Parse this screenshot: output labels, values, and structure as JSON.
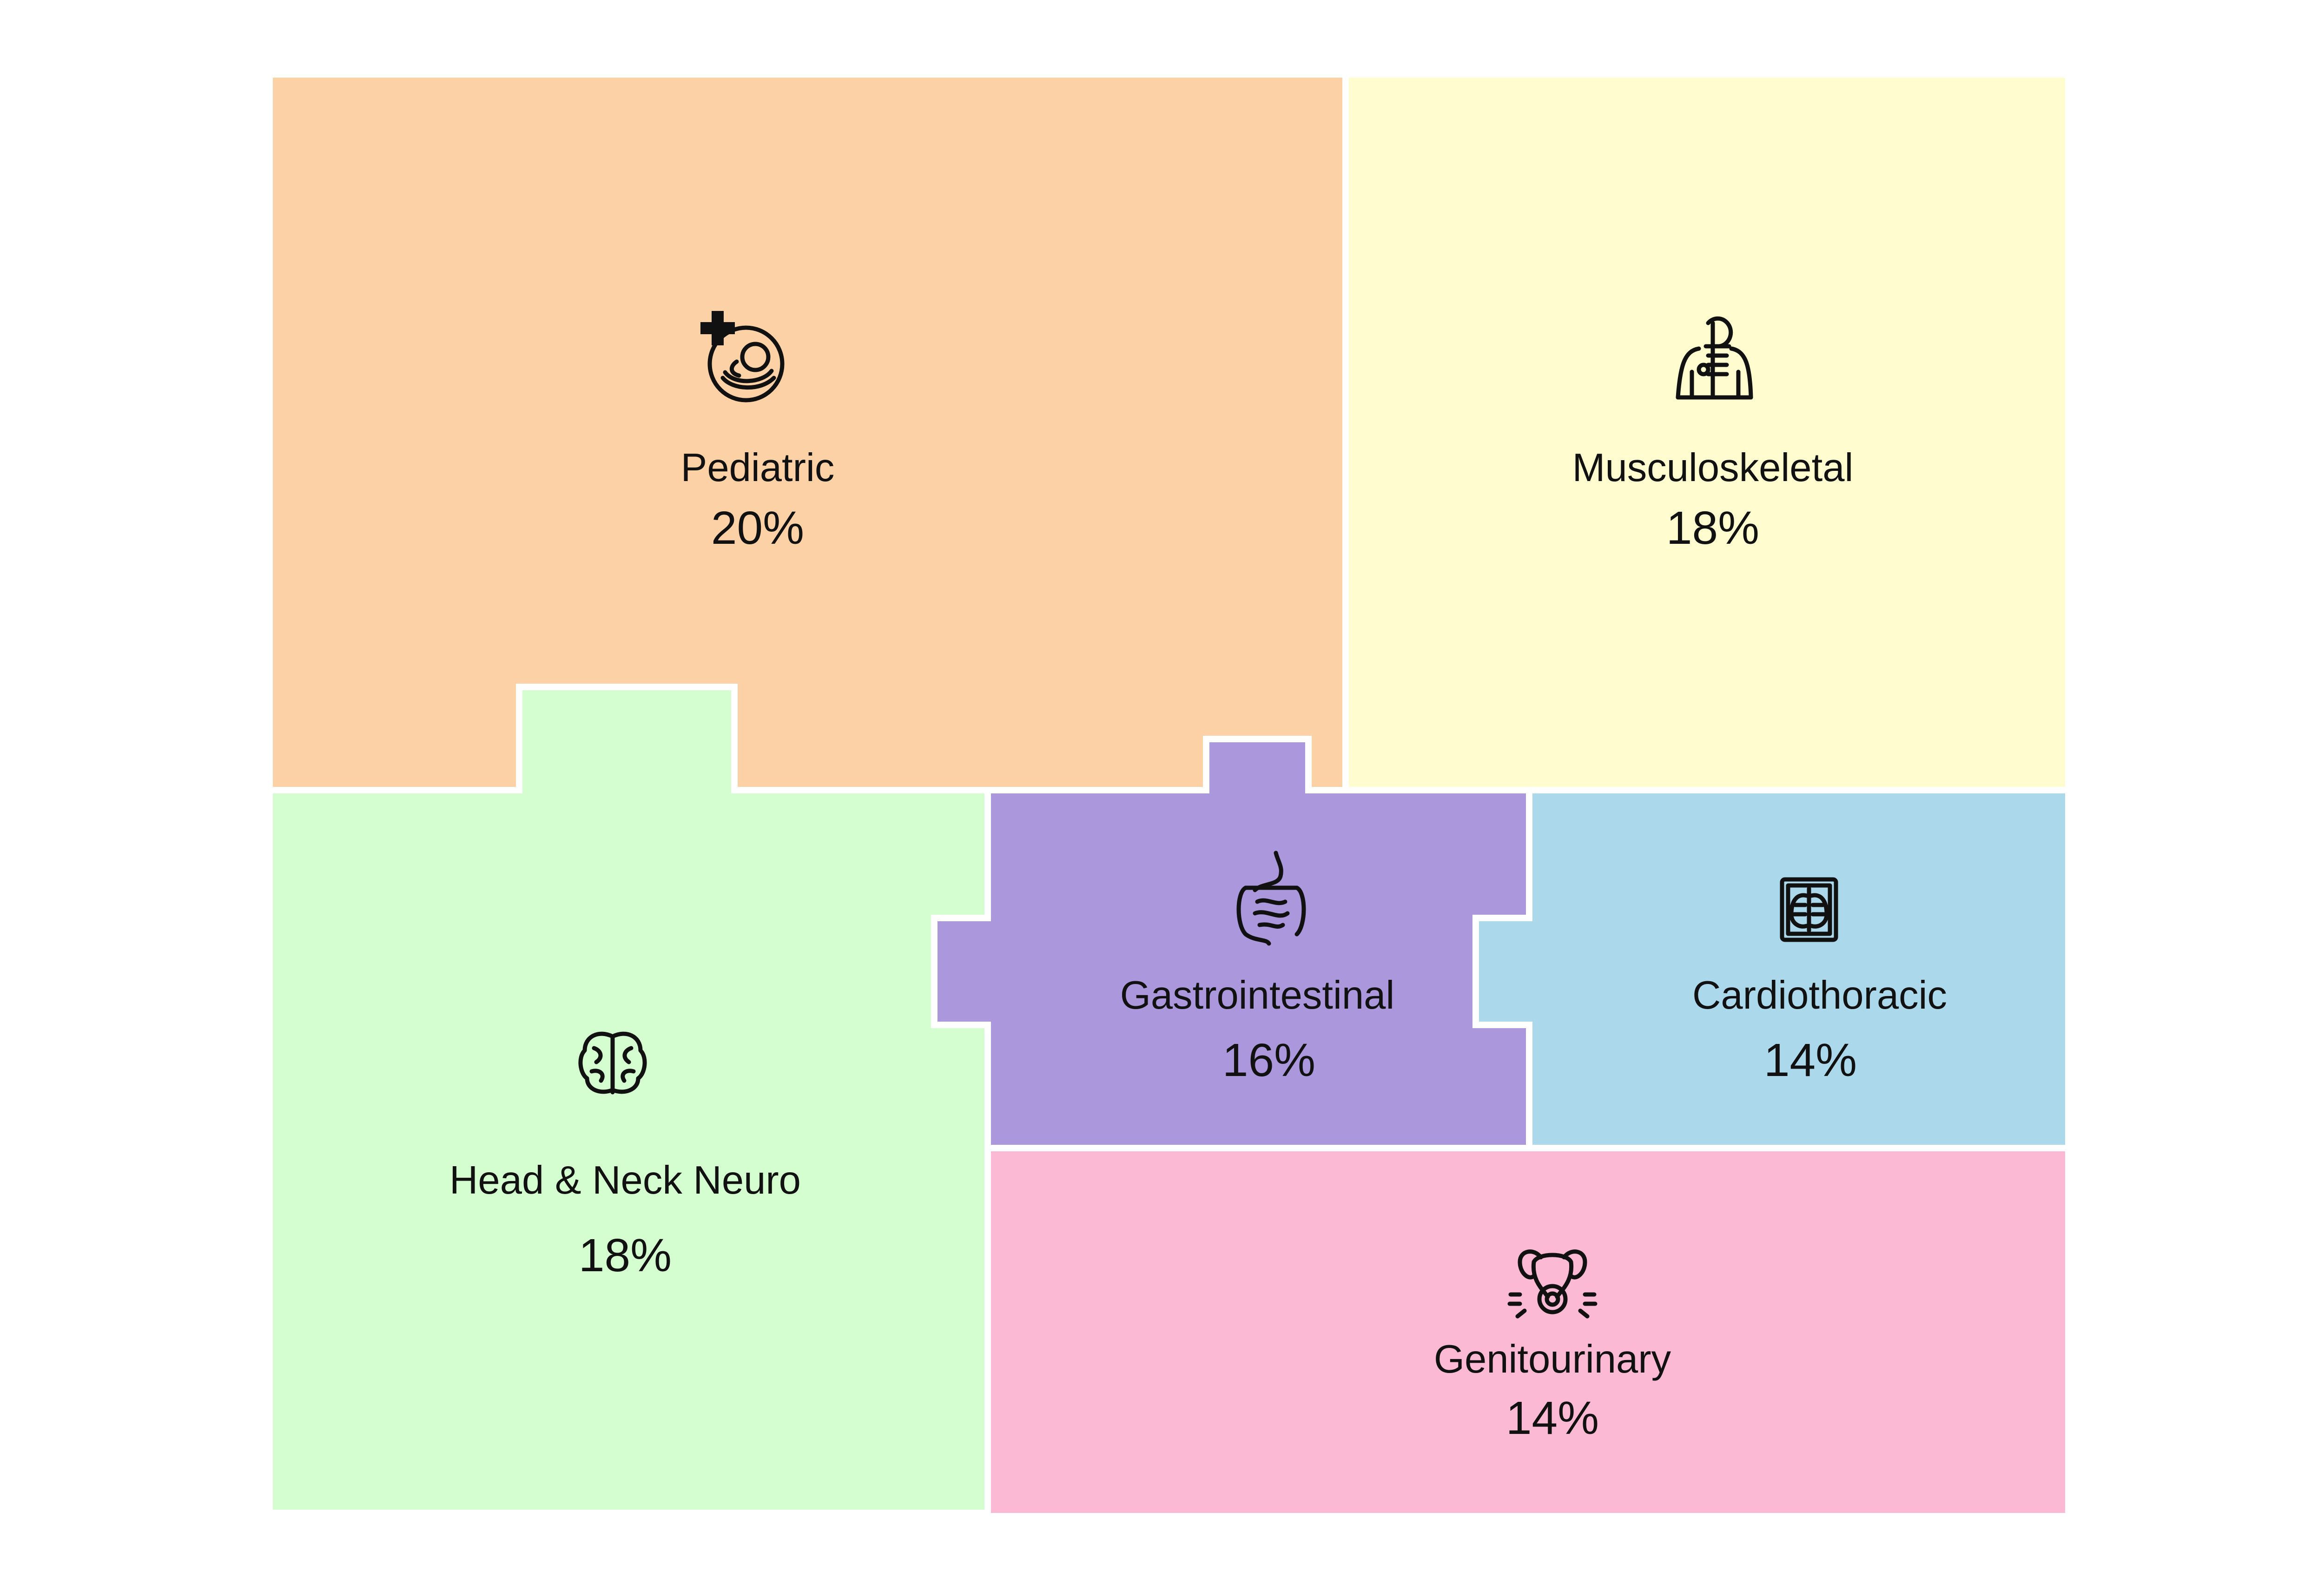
{
  "regions": [
    {
      "id": "pediatric",
      "label": "Pediatric",
      "percent": "20%",
      "value": 20,
      "color": "#FDD1A6",
      "icon": "baby-care-icon"
    },
    {
      "id": "musculoskeletal",
      "label": "Musculoskeletal",
      "percent": "18%",
      "value": 18,
      "color": "#FFFCD0",
      "icon": "skeleton-body-icon"
    },
    {
      "id": "head-neck-neuro",
      "label": "Head & Neck Neuro",
      "percent": "18%",
      "value": 18,
      "color": "#D4FDD0",
      "icon": "brain-icon"
    },
    {
      "id": "gastrointestinal",
      "label": "Gastrointestinal",
      "percent": "16%",
      "value": 16,
      "color": "#AB97DC",
      "icon": "intestines-icon"
    },
    {
      "id": "cardiothoracic",
      "label": "Cardiothoracic",
      "percent": "14%",
      "value": 14,
      "color": "#ABD8EA",
      "icon": "chest-xray-icon"
    },
    {
      "id": "genitourinary",
      "label": "Genitourinary",
      "percent": "14%",
      "value": 14,
      "color": "#FCB9D3",
      "icon": "uterus-icon"
    }
  ]
}
